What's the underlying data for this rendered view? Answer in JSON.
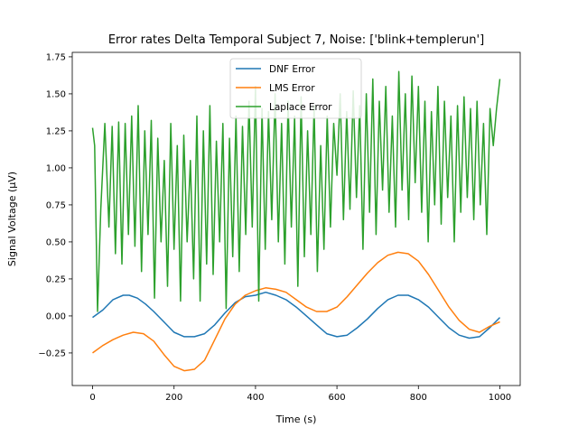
{
  "chart_data": {
    "type": "line",
    "title": "Error rates Delta Temporal Subject 7, Noise: ['blink+templerun']",
    "xlabel": "Time (s)",
    "ylabel": "Signal Voltage (μV)",
    "xlim": [
      -50,
      1050
    ],
    "ylim": [
      -0.47,
      1.78
    ],
    "x_ticks": [
      0,
      200,
      400,
      600,
      800,
      1000
    ],
    "x_tick_labels": [
      "0",
      "200",
      "400",
      "600",
      "800",
      "1000"
    ],
    "y_ticks": [
      -0.25,
      0.0,
      0.25,
      0.5,
      0.75,
      1.0,
      1.25,
      1.5,
      1.75
    ],
    "y_tick_labels": [
      "−0.25",
      "0.00",
      "0.25",
      "0.50",
      "0.75",
      "1.00",
      "1.25",
      "1.50",
      "1.75"
    ],
    "grid": false,
    "legend_position": "top-center",
    "series": [
      {
        "name": "DNF Error",
        "color": "#1f77b4",
        "x": [
          0,
          25,
          50,
          75,
          90,
          110,
          130,
          150,
          175,
          200,
          225,
          250,
          275,
          300,
          325,
          350,
          375,
          400,
          425,
          450,
          475,
          500,
          525,
          550,
          575,
          600,
          625,
          650,
          675,
          700,
          725,
          750,
          775,
          800,
          825,
          850,
          875,
          900,
          925,
          950,
          975,
          1000
        ],
        "y": [
          -0.01,
          0.04,
          0.11,
          0.14,
          0.14,
          0.12,
          0.08,
          0.03,
          -0.04,
          -0.11,
          -0.14,
          -0.14,
          -0.12,
          -0.06,
          0.02,
          0.09,
          0.13,
          0.14,
          0.16,
          0.14,
          0.11,
          0.06,
          0.0,
          -0.06,
          -0.12,
          -0.14,
          -0.13,
          -0.08,
          -0.02,
          0.05,
          0.11,
          0.14,
          0.14,
          0.11,
          0.06,
          -0.01,
          -0.08,
          -0.13,
          -0.15,
          -0.14,
          -0.08,
          -0.01
        ]
      },
      {
        "name": "LMS Error",
        "color": "#ff7f0e",
        "x": [
          0,
          25,
          50,
          75,
          100,
          125,
          150,
          175,
          200,
          225,
          250,
          275,
          300,
          325,
          350,
          375,
          400,
          425,
          450,
          475,
          500,
          525,
          550,
          575,
          600,
          625,
          650,
          675,
          700,
          725,
          750,
          775,
          800,
          825,
          850,
          875,
          900,
          925,
          950,
          975,
          1000
        ],
        "y": [
          -0.25,
          -0.2,
          -0.16,
          -0.13,
          -0.11,
          -0.12,
          -0.17,
          -0.26,
          -0.34,
          -0.37,
          -0.36,
          -0.3,
          -0.16,
          -0.02,
          0.08,
          0.14,
          0.17,
          0.19,
          0.18,
          0.16,
          0.11,
          0.06,
          0.03,
          0.03,
          0.06,
          0.13,
          0.21,
          0.29,
          0.36,
          0.41,
          0.43,
          0.42,
          0.37,
          0.28,
          0.17,
          0.06,
          -0.03,
          -0.09,
          -0.11,
          -0.07,
          -0.04
        ]
      },
      {
        "name": "Laplace Error",
        "color": "#2ca02c",
        "x": [
          0,
          5,
          12,
          20,
          30,
          40,
          48,
          56,
          64,
          72,
          80,
          88,
          96,
          104,
          112,
          120,
          128,
          136,
          144,
          152,
          160,
          168,
          176,
          184,
          192,
          200,
          208,
          216,
          224,
          232,
          240,
          248,
          256,
          264,
          272,
          280,
          288,
          296,
          304,
          312,
          320,
          328,
          336,
          344,
          352,
          360,
          368,
          376,
          384,
          392,
          400,
          408,
          416,
          424,
          432,
          440,
          448,
          456,
          464,
          472,
          480,
          488,
          496,
          504,
          512,
          520,
          528,
          536,
          544,
          552,
          560,
          568,
          576,
          584,
          592,
          600,
          608,
          616,
          624,
          632,
          640,
          648,
          656,
          664,
          672,
          680,
          688,
          696,
          704,
          712,
          720,
          728,
          736,
          744,
          752,
          760,
          768,
          776,
          784,
          792,
          800,
          808,
          816,
          824,
          832,
          840,
          848,
          856,
          864,
          872,
          880,
          888,
          896,
          904,
          912,
          920,
          928,
          936,
          944,
          952,
          960,
          968,
          976,
          984,
          992,
          1000
        ],
        "y": [
          1.27,
          1.15,
          0.03,
          0.72,
          1.3,
          0.6,
          1.28,
          0.42,
          1.31,
          0.35,
          1.3,
          0.55,
          1.35,
          0.47,
          1.42,
          0.3,
          1.25,
          0.55,
          1.32,
          0.12,
          1.2,
          0.5,
          1.05,
          0.2,
          1.3,
          0.45,
          1.15,
          0.1,
          1.22,
          0.5,
          1.05,
          0.25,
          1.35,
          0.1,
          1.25,
          0.35,
          1.42,
          0.28,
          1.18,
          0.5,
          1.3,
          0.05,
          1.2,
          0.4,
          1.35,
          0.3,
          1.28,
          0.55,
          1.45,
          0.6,
          1.55,
          0.1,
          1.4,
          0.45,
          1.38,
          0.65,
          1.5,
          0.5,
          1.3,
          0.35,
          1.45,
          0.6,
          1.35,
          0.2,
          1.48,
          0.4,
          1.25,
          0.55,
          1.42,
          0.3,
          1.15,
          0.45,
          1.35,
          0.6,
          1.3,
          0.95,
          1.5,
          0.65,
          1.38,
          0.72,
          1.52,
          0.8,
          1.42,
          0.45,
          1.5,
          0.7,
          1.6,
          0.55,
          1.45,
          0.85,
          1.55,
          0.7,
          1.35,
          0.6,
          1.65,
          0.85,
          1.5,
          0.65,
          1.62,
          0.9,
          1.55,
          0.7,
          1.45,
          0.5,
          1.38,
          0.75,
          1.55,
          0.62,
          1.45,
          0.8,
          1.35,
          0.5,
          1.42,
          0.7,
          1.48,
          0.8,
          1.4,
          0.65,
          1.45,
          0.75,
          1.3,
          0.55,
          1.4,
          1.15,
          1.4,
          1.6
        ]
      }
    ]
  }
}
